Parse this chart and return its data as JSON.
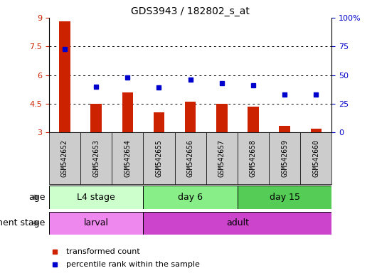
{
  "title": "GDS3943 / 182802_s_at",
  "samples": [
    "GSM542652",
    "GSM542653",
    "GSM542654",
    "GSM542655",
    "GSM542656",
    "GSM542657",
    "GSM542658",
    "GSM542659",
    "GSM542660"
  ],
  "bar_values": [
    8.8,
    4.5,
    5.1,
    4.05,
    4.6,
    4.5,
    4.35,
    3.35,
    3.2
  ],
  "dot_values": [
    73,
    40,
    48,
    39,
    46,
    43,
    41,
    33,
    33
  ],
  "ylim_left": [
    3,
    9
  ],
  "ylim_right": [
    0,
    100
  ],
  "yticks_left": [
    3,
    4.5,
    6,
    7.5,
    9
  ],
  "yticks_right": [
    0,
    25,
    50,
    75,
    100
  ],
  "ytick_labels_left": [
    "3",
    "4.5",
    "6",
    "7.5",
    "9"
  ],
  "ytick_labels_right": [
    "0",
    "25",
    "50",
    "75",
    "100%"
  ],
  "bar_color": "#cc2200",
  "dot_color": "#0000cc",
  "age_groups": [
    {
      "label": "L4 stage",
      "start": 0,
      "end": 3,
      "color": "#ccffcc"
    },
    {
      "label": "day 6",
      "start": 3,
      "end": 6,
      "color": "#88ee88"
    },
    {
      "label": "day 15",
      "start": 6,
      "end": 9,
      "color": "#55cc55"
    }
  ],
  "dev_groups": [
    {
      "label": "larval",
      "start": 0,
      "end": 3,
      "color": "#ee88ee"
    },
    {
      "label": "adult",
      "start": 3,
      "end": 9,
      "color": "#cc44cc"
    }
  ],
  "age_label": "age",
  "dev_label": "development stage",
  "legend_bar": "transformed count",
  "legend_dot": "percentile rank within the sample",
  "grid_color": "#000000",
  "sample_bg_color": "#cccccc",
  "bar_width": 0.35
}
